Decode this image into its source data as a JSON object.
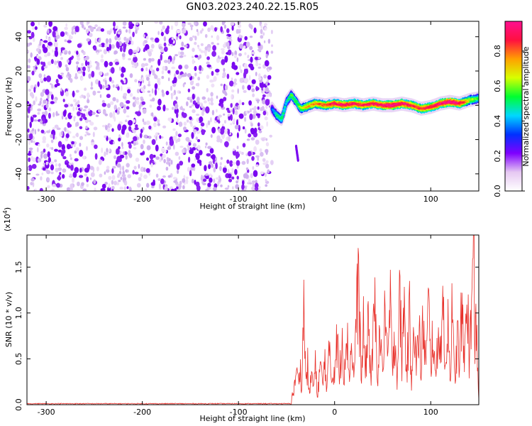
{
  "title": "GN03.2023.240.22.15.R05",
  "chart_data": [
    {
      "type": "heatmap",
      "xlabel": "Height of straight line (km)",
      "ylabel": "Frequency (Hz)",
      "xlim": [
        -320,
        150
      ],
      "ylim": [
        -50,
        49
      ],
      "xticks": [
        -300,
        -200,
        -100,
        0,
        100
      ],
      "yticks": [
        -40,
        -20,
        0,
        20,
        40
      ],
      "noise_region_x": [
        -320,
        -65
      ],
      "signal_band": {
        "x": [
          -65,
          -60,
          -55,
          -50,
          -45,
          -40,
          -35,
          -30,
          -20,
          -10,
          0,
          10,
          20,
          30,
          40,
          50,
          60,
          70,
          80,
          90,
          100,
          110,
          120,
          130,
          140,
          150
        ],
        "freq": [
          -2,
          -6,
          -8,
          2,
          6,
          2,
          -2,
          -1,
          1,
          0,
          1,
          0,
          1,
          0,
          1,
          0,
          0,
          1,
          0,
          -2,
          -1,
          1,
          2,
          1,
          3,
          4
        ],
        "amplitude": [
          0.3,
          0.45,
          0.5,
          0.4,
          0.5,
          0.5,
          0.55,
          0.65,
          0.7,
          0.75,
          0.8,
          0.85,
          0.8,
          0.8,
          0.82,
          0.85,
          0.9,
          0.85,
          0.8,
          0.78,
          0.8,
          0.85,
          0.9,
          0.85,
          0.6,
          0.5
        ]
      },
      "streak": {
        "x": [
          -40,
          -38
        ],
        "freq": [
          -24,
          -32
        ]
      },
      "colorbar": {
        "label": "Normalized spectral amplitude",
        "ticks": [
          0.0,
          0.2,
          0.4,
          0.6,
          0.8
        ],
        "range": [
          0,
          0.97
        ],
        "stops": [
          "#ffffff",
          "#e6c8f2",
          "#7f00ff",
          "#0030ff",
          "#00d8ff",
          "#00ff30",
          "#d8ff00",
          "#ffa000",
          "#ff1040",
          "#ff1090"
        ]
      }
    },
    {
      "type": "line",
      "xlabel": "Height of straight line (km)",
      "ylabel": "SNR (10 * v/v)",
      "yscale_label": "(x10^4)",
      "xlim": [
        -320,
        150
      ],
      "ylim": [
        0,
        1.85
      ],
      "xticks": [
        -300,
        -200,
        -100,
        0,
        100
      ],
      "yticks": [
        0.0,
        0.5,
        1.0,
        1.5
      ],
      "color": "#e8302a",
      "series": [
        {
          "x": [
            -320,
            -300,
            -250,
            -200,
            -150,
            -100,
            -60,
            -50,
            -45,
            -42,
            -40,
            -38,
            -36,
            -34,
            -32,
            -30,
            -28,
            -26,
            -24,
            -22,
            -20,
            -18,
            -15,
            -12,
            -10,
            -8,
            -5,
            -3,
            0,
            3,
            5,
            8,
            10,
            12,
            15,
            18,
            20,
            22,
            25,
            28,
            30,
            32,
            35,
            38,
            40,
            42,
            45,
            48,
            50,
            52,
            55,
            58,
            60,
            62,
            65,
            68,
            70,
            72,
            75,
            78,
            80,
            82,
            85,
            88,
            90,
            92,
            95,
            98,
            100,
            102,
            105,
            108,
            110,
            112,
            115,
            118,
            120,
            122,
            125,
            128,
            130,
            132,
            135,
            138,
            140,
            142,
            145,
            146,
            147,
            148,
            150
          ],
          "values": [
            0.01,
            0.01,
            0.01,
            0.01,
            0.01,
            0.01,
            0.02,
            0.03,
            0.08,
            0.2,
            0.45,
            0.3,
            0.5,
            0.2,
            1.35,
            0.3,
            0.5,
            0.1,
            0.45,
            0.2,
            0.5,
            0.1,
            0.5,
            0.25,
            0.6,
            0.2,
            0.75,
            0.3,
            0.5,
            0.85,
            0.3,
            0.9,
            0.35,
            1.1,
            0.4,
            0.8,
            0.3,
            1.0,
            1.52,
            0.3,
            0.95,
            0.4,
            1.1,
            0.3,
            0.8,
            1.2,
            0.4,
            1.0,
            0.3,
            1.25,
            0.5,
            1.3,
            0.4,
            1.0,
            0.35,
            1.4,
            0.5,
            1.35,
            0.4,
            1.1,
            0.3,
            1.2,
            0.45,
            1.05,
            0.3,
            1.1,
            0.5,
            1.3,
            0.4,
            1.0,
            0.3,
            1.1,
            0.5,
            1.5,
            0.4,
            1.2,
            0.35,
            1.1,
            0.3,
            0.9,
            0.4,
            1.25,
            0.5,
            1.65,
            0.4,
            1.3,
            1.85,
            0.5,
            1.2,
            0.9,
            0.05
          ]
        }
      ]
    }
  ]
}
